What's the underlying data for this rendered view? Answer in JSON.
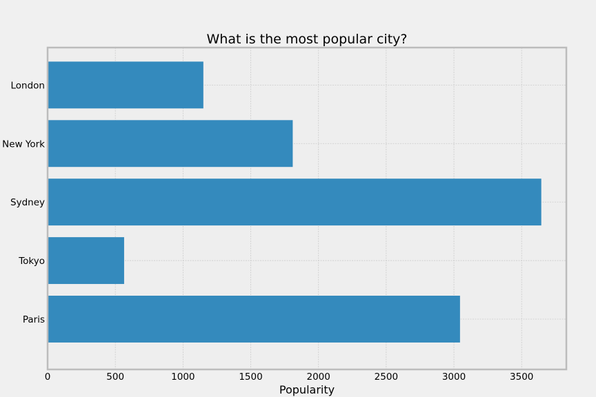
{
  "chart_data": {
    "type": "bar",
    "orientation": "horizontal",
    "title": "What is the most popular city?",
    "xlabel": "Popularity",
    "ylabel": "",
    "categories": [
      "London",
      "New York",
      "Sydney",
      "Tokyo",
      "Paris"
    ],
    "values": [
      1150,
      1810,
      3645,
      565,
      3045
    ],
    "xlim": [
      0,
      3830
    ],
    "xticks": [
      0,
      500,
      1000,
      1500,
      2000,
      2500,
      3000,
      3500
    ],
    "grid": true,
    "legend": "none",
    "colors": {
      "bar": "#348abd",
      "plot_background": "#eeeeee",
      "figure_background": "#f0f0f0",
      "spine": "#bcbcbc"
    }
  }
}
